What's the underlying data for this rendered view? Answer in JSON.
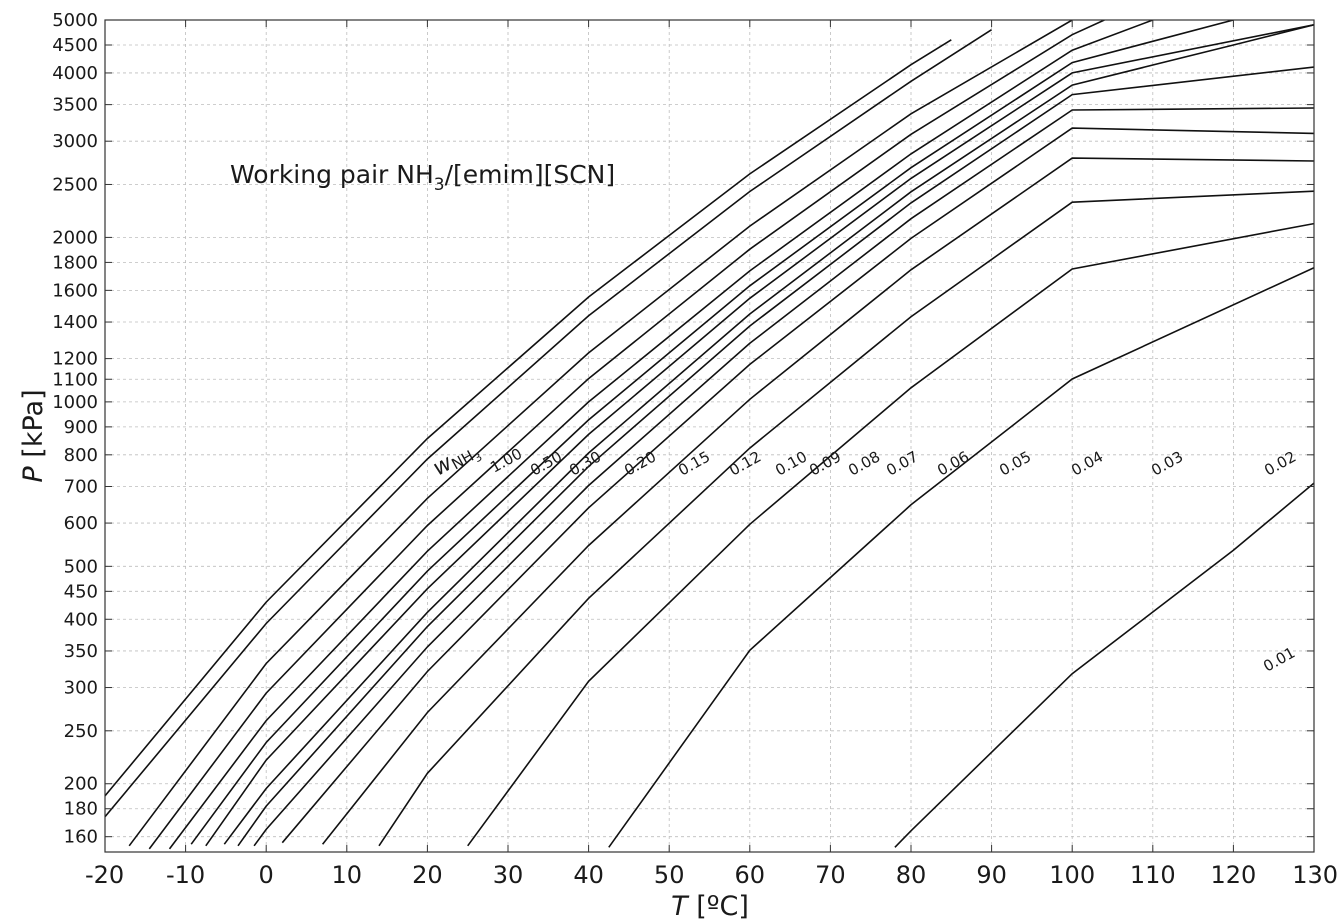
{
  "chart_data": {
    "type": "line",
    "title": "",
    "annotation": {
      "prefix": "Working pair NH",
      "sub": "3",
      "suffix": "/[emim][SCN]"
    },
    "xlabel": {
      "symbol": "T",
      "unit": " [ºC]"
    },
    "ylabel": {
      "symbol": "P",
      "unit": " [kPa]"
    },
    "x_scale": "linear",
    "y_scale": "log",
    "xlim": [
      -20,
      130
    ],
    "ylim": [
      150,
      5000
    ],
    "grid": true,
    "x_ticks": [
      -20,
      -10,
      0,
      10,
      20,
      30,
      40,
      50,
      60,
      70,
      80,
      90,
      100,
      110,
      120,
      130
    ],
    "y_ticks": [
      160,
      180,
      200,
      250,
      300,
      350,
      400,
      450,
      500,
      600,
      700,
      800,
      900,
      1000,
      1100,
      1200,
      1400,
      1600,
      1800,
      2000,
      2500,
      3000,
      3500,
      4000,
      4500,
      5000
    ],
    "series_legend_prefix": {
      "symbol": "w",
      "sub_main": "NH",
      "sub_sub": "3"
    },
    "series": [
      {
        "name": "1.00",
        "points": [
          [
            -20,
            190
          ],
          [
            0,
            430
          ],
          [
            20,
            857
          ],
          [
            40,
            1556
          ],
          [
            60,
            2614
          ],
          [
            80,
            4142
          ],
          [
            85,
            4600
          ]
        ]
      },
      {
        "name": "0.50",
        "points": [
          [
            -20,
            174
          ],
          [
            0,
            393
          ],
          [
            20,
            786
          ],
          [
            40,
            1437
          ],
          [
            60,
            2427
          ],
          [
            80,
            3861
          ],
          [
            90,
            4800
          ]
        ]
      },
      {
        "name": "0.30",
        "points": [
          [
            -17,
            154
          ],
          [
            0,
            332
          ],
          [
            20,
            666
          ],
          [
            40,
            1229
          ],
          [
            60,
            2098
          ],
          [
            80,
            3367
          ],
          [
            100,
            5000
          ]
        ]
      },
      {
        "name": "0.20",
        "points": [
          [
            -14.5,
            152
          ],
          [
            0,
            293
          ],
          [
            20,
            594
          ],
          [
            40,
            1103
          ],
          [
            60,
            1903
          ],
          [
            80,
            3088
          ],
          [
            100,
            4700
          ],
          [
            104,
            5000
          ]
        ]
      },
      {
        "name": "0.15",
        "points": [
          [
            -12,
            152
          ],
          [
            0,
            261
          ],
          [
            20,
            533
          ],
          [
            40,
            1000
          ],
          [
            60,
            1737
          ],
          [
            80,
            2844
          ],
          [
            100,
            4402
          ],
          [
            110,
            5000
          ]
        ]
      },
      {
        "name": "0.12",
        "points": [
          [
            -9.3,
            155
          ],
          [
            0,
            238
          ],
          [
            20,
            490
          ],
          [
            40,
            927
          ],
          [
            60,
            1631
          ],
          [
            80,
            2683
          ],
          [
            100,
            4178
          ],
          [
            120,
            5000
          ]
        ]
      },
      {
        "name": "0.10",
        "points": [
          [
            -7.5,
            154
          ],
          [
            0,
            221
          ],
          [
            20,
            455
          ],
          [
            40,
            872
          ],
          [
            60,
            1547
          ],
          [
            80,
            2565
          ],
          [
            100,
            4000
          ],
          [
            130,
            4900
          ]
        ]
      },
      {
        "name": "0.09",
        "points": [
          [
            -5.2,
            155
          ],
          [
            0,
            196
          ],
          [
            20,
            412
          ],
          [
            40,
            806
          ],
          [
            60,
            1448
          ],
          [
            80,
            2424
          ],
          [
            100,
            3801
          ],
          [
            120,
            4500
          ],
          [
            130,
            4900
          ]
        ]
      },
      {
        "name": "0.08",
        "points": [
          [
            -3.5,
            154
          ],
          [
            0,
            182
          ],
          [
            20,
            388
          ],
          [
            40,
            762
          ],
          [
            60,
            1377
          ],
          [
            80,
            2313
          ],
          [
            100,
            3651
          ],
          [
            130,
            4100
          ]
        ]
      },
      {
        "name": "0.07",
        "points": [
          [
            -1.5,
            154
          ],
          [
            0,
            165
          ],
          [
            20,
            356
          ],
          [
            40,
            703
          ],
          [
            60,
            1280
          ],
          [
            80,
            2164
          ],
          [
            100,
            3422
          ],
          [
            130,
            3450
          ]
        ]
      },
      {
        "name": "0.06",
        "points": [
          [
            2,
            156
          ],
          [
            20,
            321
          ],
          [
            40,
            640
          ],
          [
            60,
            1171
          ],
          [
            80,
            1992
          ],
          [
            100,
            3170
          ],
          [
            130,
            3100
          ]
        ]
      },
      {
        "name": "0.05",
        "points": [
          [
            7,
            155
          ],
          [
            20,
            270
          ],
          [
            40,
            546
          ],
          [
            60,
            1011
          ],
          [
            80,
            1745
          ],
          [
            100,
            2794
          ],
          [
            130,
            2760
          ]
        ]
      },
      {
        "name": "0.04",
        "points": [
          [
            14,
            154
          ],
          [
            20,
            209
          ],
          [
            40,
            437
          ],
          [
            60,
            823
          ],
          [
            80,
            1432
          ],
          [
            100,
            2320
          ],
          [
            130,
            2430
          ]
        ]
      },
      {
        "name": "0.03",
        "points": [
          [
            25,
            154
          ],
          [
            40,
            308
          ],
          [
            60,
            597
          ],
          [
            80,
            1061
          ],
          [
            100,
            1751
          ],
          [
            130,
            2120
          ]
        ]
      },
      {
        "name": "0.02",
        "points": [
          [
            42.5,
            153
          ],
          [
            60,
            351
          ],
          [
            80,
            648
          ],
          [
            100,
            1101
          ],
          [
            130,
            1760
          ]
        ]
      },
      {
        "name": "0.01",
        "points": [
          [
            78,
            153
          ],
          [
            80,
            164
          ],
          [
            100,
            318
          ],
          [
            120,
            535
          ],
          [
            130,
            710
          ]
        ]
      }
    ]
  }
}
